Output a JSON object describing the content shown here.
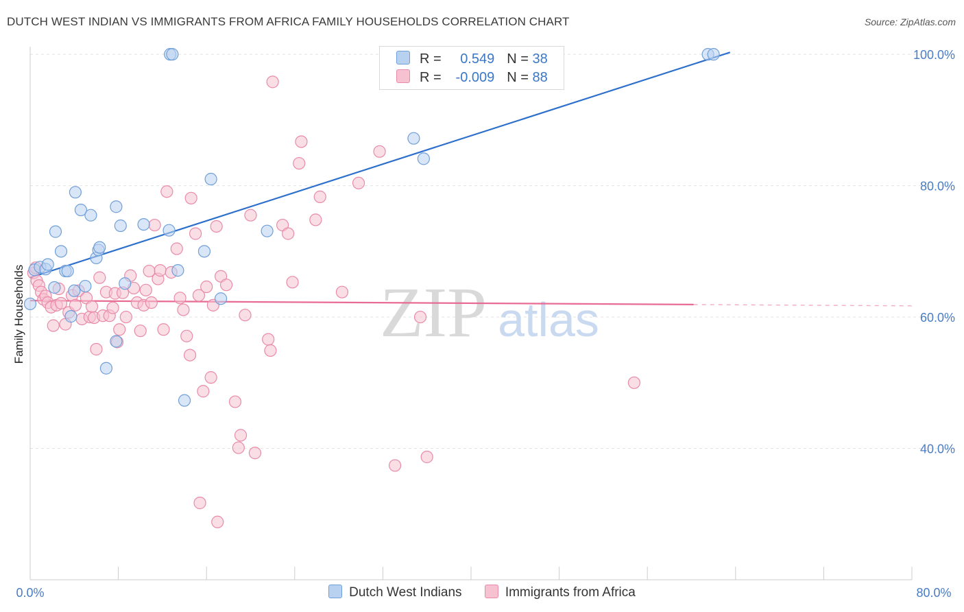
{
  "header": {
    "title": "DUTCH WEST INDIAN VS IMMIGRANTS FROM AFRICA FAMILY HOUSEHOLDS CORRELATION CHART",
    "source": "Source: ZipAtlas.com"
  },
  "watermark": {
    "zip": "ZIP",
    "atlas": "atlas"
  },
  "legend": {
    "rows": [
      {
        "r_label": "R = ",
        "r_value": "0.549",
        "n_label": "N = ",
        "n_value": "38"
      },
      {
        "r_label": "R = ",
        "r_value": "-0.009",
        "n_label": "N = ",
        "n_value": "88"
      }
    ]
  },
  "colors": {
    "blue_fill": "#b9d1f0",
    "blue_stroke": "#6f9fd8",
    "blue_line": "#2d6fcc",
    "pink_fill": "#f6c2d2",
    "pink_stroke": "#e98aa8",
    "pink_line": "#e86b93",
    "axis_text": "#4a7cc4",
    "grid": "#e2e2e2"
  },
  "chart_data": {
    "type": "scatter",
    "title": "DUTCH WEST INDIAN VS IMMIGRANTS FROM AFRICA FAMILY HOUSEHOLDS CORRELATION CHART",
    "xlabel": "",
    "ylabel": "Family Households",
    "xlim": [
      0,
      80
    ],
    "ylim": [
      20,
      102
    ],
    "x_tick_labels": [
      "0.0%",
      "80.0%"
    ],
    "y_ticks": [
      40,
      60,
      80,
      100
    ],
    "y_tick_labels": [
      "40.0%",
      "60.0%",
      "80.0%",
      "100.0%"
    ],
    "grid": true,
    "legend_position": "bottom",
    "series": [
      {
        "name": "Dutch West Indians",
        "r": 0.549,
        "n": 38,
        "trend": {
          "x": [
            0,
            63.5
          ],
          "y": [
            66.0,
            100.3
          ]
        },
        "points": [
          [
            0.0,
            62.0
          ],
          [
            0.4,
            67.2
          ],
          [
            0.9,
            67.6
          ],
          [
            1.4,
            67.3
          ],
          [
            1.6,
            68.0
          ],
          [
            2.3,
            73.0
          ],
          [
            2.8,
            70.0
          ],
          [
            3.2,
            67.0
          ],
          [
            2.2,
            64.5
          ],
          [
            5.0,
            64.7
          ],
          [
            3.4,
            67.0
          ],
          [
            4.1,
            79.0
          ],
          [
            4.6,
            76.3
          ],
          [
            5.5,
            75.5
          ],
          [
            6.0,
            69.0
          ],
          [
            6.2,
            70.2
          ],
          [
            6.3,
            70.6
          ],
          [
            7.8,
            76.8
          ],
          [
            8.2,
            73.9
          ],
          [
            10.3,
            74.1
          ],
          [
            12.6,
            73.2
          ],
          [
            13.4,
            67.1
          ],
          [
            8.6,
            65.1
          ],
          [
            3.7,
            60.1
          ],
          [
            4.0,
            64.0
          ],
          [
            6.9,
            52.2
          ],
          [
            7.8,
            56.3
          ],
          [
            14.0,
            47.3
          ],
          [
            15.8,
            70.0
          ],
          [
            16.4,
            81.0
          ],
          [
            17.3,
            62.8
          ],
          [
            21.5,
            73.1
          ],
          [
            12.7,
            100.0
          ],
          [
            12.9,
            100.0
          ],
          [
            34.8,
            87.2
          ],
          [
            35.7,
            84.1
          ],
          [
            61.5,
            100.0
          ],
          [
            62.0,
            100.0
          ]
        ]
      },
      {
        "name": "Immigrants from Africa",
        "r": -0.009,
        "n": 88,
        "trend": {
          "x": [
            0,
            60.2
          ],
          "y": [
            62.5,
            61.9
          ],
          "dashed_to_x": 80
        },
        "points": [
          [
            0.3,
            66.7
          ],
          [
            0.5,
            67.5
          ],
          [
            0.6,
            65.5
          ],
          [
            0.8,
            64.8
          ],
          [
            1.0,
            63.8
          ],
          [
            1.2,
            62.7
          ],
          [
            1.4,
            63.2
          ],
          [
            1.6,
            62.2
          ],
          [
            1.9,
            61.5
          ],
          [
            2.1,
            58.7
          ],
          [
            2.4,
            61.8
          ],
          [
            2.6,
            64.3
          ],
          [
            2.8,
            62.1
          ],
          [
            3.2,
            58.9
          ],
          [
            3.5,
            60.7
          ],
          [
            3.8,
            63.3
          ],
          [
            4.1,
            61.8
          ],
          [
            4.4,
            64.0
          ],
          [
            4.7,
            59.7
          ],
          [
            5.1,
            62.9
          ],
          [
            5.4,
            60.0
          ],
          [
            5.6,
            61.6
          ],
          [
            5.8,
            59.9
          ],
          [
            6.0,
            55.1
          ],
          [
            6.3,
            66.0
          ],
          [
            6.6,
            60.2
          ],
          [
            6.9,
            63.8
          ],
          [
            7.2,
            60.2
          ],
          [
            7.5,
            61.4
          ],
          [
            7.7,
            63.6
          ],
          [
            7.9,
            56.2
          ],
          [
            8.1,
            58.1
          ],
          [
            8.4,
            63.7
          ],
          [
            8.7,
            60.0
          ],
          [
            9.1,
            66.3
          ],
          [
            9.4,
            64.4
          ],
          [
            9.7,
            62.2
          ],
          [
            10.0,
            57.9
          ],
          [
            10.3,
            61.8
          ],
          [
            10.5,
            64.1
          ],
          [
            10.8,
            67.0
          ],
          [
            11.0,
            62.2
          ],
          [
            11.3,
            74.0
          ],
          [
            11.6,
            65.8
          ],
          [
            11.8,
            67.1
          ],
          [
            12.1,
            58.1
          ],
          [
            12.4,
            79.1
          ],
          [
            12.8,
            66.8
          ],
          [
            13.3,
            70.4
          ],
          [
            13.6,
            62.9
          ],
          [
            13.9,
            61.1
          ],
          [
            14.2,
            57.1
          ],
          [
            14.5,
            54.2
          ],
          [
            14.6,
            78.1
          ],
          [
            15.0,
            72.7
          ],
          [
            15.3,
            63.3
          ],
          [
            15.7,
            48.7
          ],
          [
            16.0,
            64.6
          ],
          [
            16.4,
            50.8
          ],
          [
            16.6,
            61.8
          ],
          [
            16.9,
            73.8
          ],
          [
            17.3,
            66.2
          ],
          [
            17.8,
            64.9
          ],
          [
            18.6,
            47.1
          ],
          [
            19.1,
            42.0
          ],
          [
            18.9,
            40.1
          ],
          [
            19.5,
            60.3
          ],
          [
            20.0,
            75.5
          ],
          [
            20.4,
            39.3
          ],
          [
            21.6,
            56.6
          ],
          [
            21.8,
            54.9
          ],
          [
            22.0,
            95.8
          ],
          [
            22.9,
            74.0
          ],
          [
            23.4,
            72.7
          ],
          [
            23.8,
            65.3
          ],
          [
            24.4,
            83.4
          ],
          [
            24.6,
            86.7
          ],
          [
            25.9,
            74.8
          ],
          [
            26.3,
            78.3
          ],
          [
            28.3,
            63.8
          ],
          [
            29.8,
            80.4
          ],
          [
            31.7,
            85.2
          ],
          [
            33.1,
            37.4
          ],
          [
            35.4,
            60.0
          ],
          [
            36.0,
            38.7
          ],
          [
            54.8,
            50.0
          ],
          [
            15.4,
            31.7
          ],
          [
            17.0,
            28.8
          ]
        ]
      }
    ]
  },
  "bottom_legend": {
    "items": [
      {
        "label": "Dutch West Indians"
      },
      {
        "label": "Immigrants from Africa"
      }
    ]
  }
}
